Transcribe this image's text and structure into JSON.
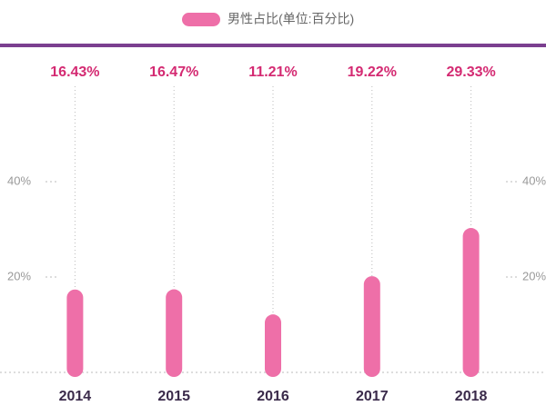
{
  "chart_data": {
    "type": "bar",
    "categories": [
      "2014",
      "2015",
      "2016",
      "2017",
      "2018"
    ],
    "series": [
      {
        "name": "男性占比(单位:百分比)",
        "color": "#ee6fa8",
        "values": [
          16.43,
          16.47,
          11.21,
          19.22,
          29.33
        ],
        "value_labels": [
          "16.43%",
          "16.47%",
          "11.21%",
          "19.22%",
          "29.33%"
        ]
      }
    ],
    "ylim": [
      0,
      60
    ],
    "yticks": [
      {
        "value": 20,
        "label": "20%"
      },
      {
        "value": 40,
        "label": "40%"
      }
    ],
    "label_color": "#d42a72"
  }
}
